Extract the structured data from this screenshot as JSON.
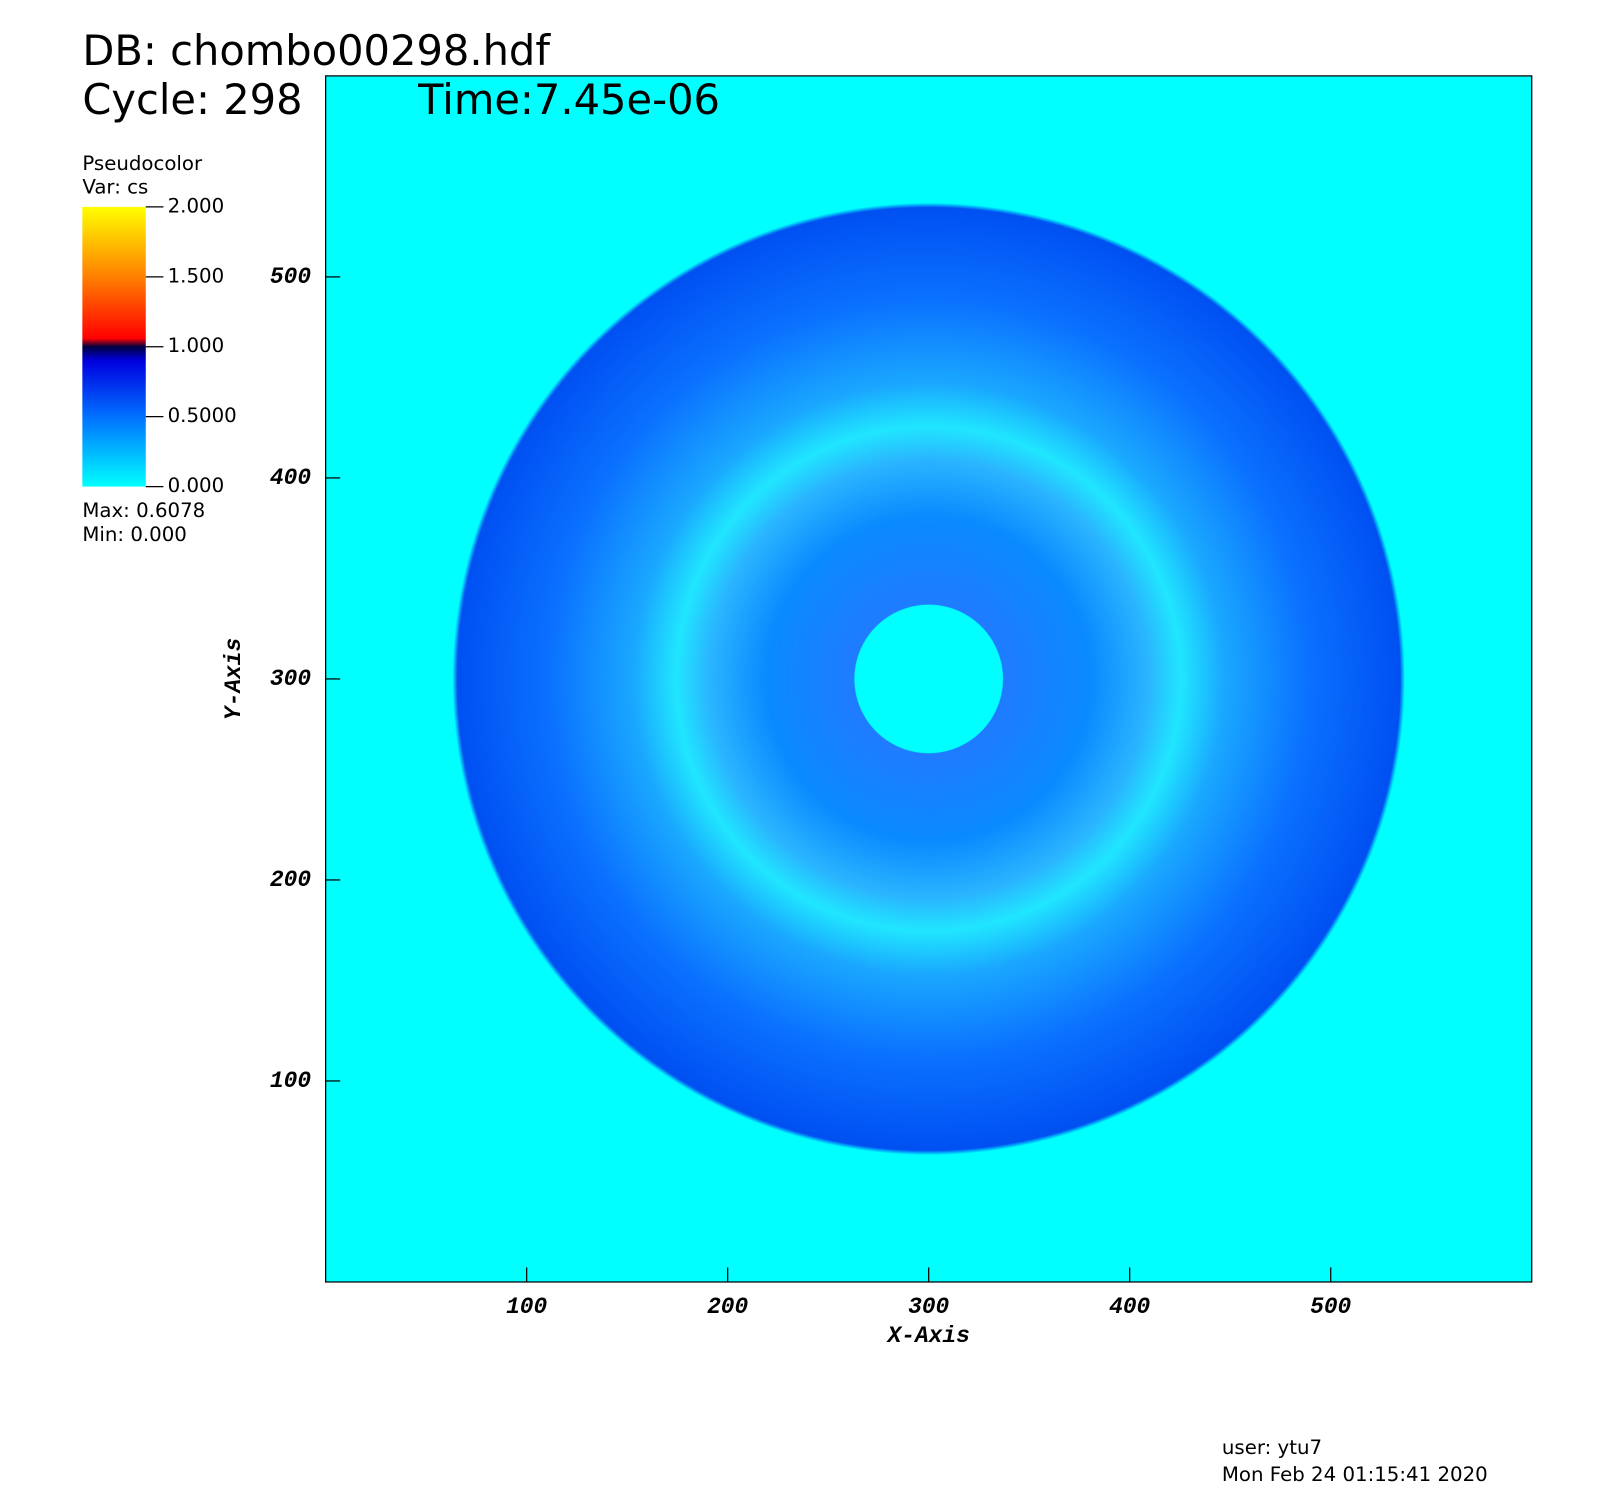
{
  "chart_data": {
    "type": "pseudocolor",
    "db_label": "DB: chombo00298.hdf",
    "cycle_label": "Cycle: 298",
    "time_label": "Time:7.45e-06",
    "legend_title": "Pseudocolor",
    "legend_var": "Var: cs",
    "legend_max": "Max:  0.6078",
    "legend_min": "Min:  0.000",
    "colorbar_ticks": [
      {
        "value": 2,
        "label": "2.000"
      },
      {
        "value": 1.5,
        "label": "1.500"
      },
      {
        "value": 1,
        "label": "1.000"
      },
      {
        "value": 0.5,
        "label": "0.5000"
      },
      {
        "value": 0,
        "label": "0.000"
      }
    ],
    "colorbar_lim": [
      0,
      2
    ],
    "x_label": "X-Axis",
    "y_label": "Y-Axis",
    "xlim": [
      0,
      600
    ],
    "ylim": [
      0,
      600
    ],
    "xticks": [
      100,
      200,
      300,
      400,
      500
    ],
    "yticks": [
      100,
      200,
      300,
      400,
      500
    ],
    "user_label": "user: ytu7",
    "date_label": "Mon Feb 24 01:15:41 2020"
  }
}
